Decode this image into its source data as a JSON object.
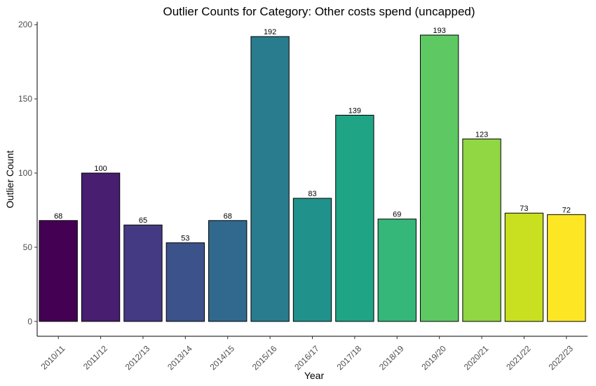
{
  "chart_data": {
    "type": "bar",
    "title": "Outlier Counts for Category: Other costs spend (uncapped)",
    "xlabel": "Year",
    "ylabel": "Outlier Count",
    "categories": [
      "2010/11",
      "2011/12",
      "2012/13",
      "2013/14",
      "2014/15",
      "2015/16",
      "2016/17",
      "2017/18",
      "2018/19",
      "2019/20",
      "2020/21",
      "2021/22",
      "2022/23"
    ],
    "values": [
      68,
      100,
      65,
      53,
      68,
      192,
      83,
      139,
      69,
      193,
      123,
      73,
      72
    ],
    "data_labels": [
      "68",
      "100",
      "65",
      "53",
      "68",
      "192",
      "83",
      "139",
      "69",
      "193",
      "123",
      "73",
      "72"
    ],
    "colors": [
      "#440154",
      "#481e70",
      "#443a83",
      "#3b528b",
      "#31688e",
      "#287c8e",
      "#21918c",
      "#20a486",
      "#35b779",
      "#5ec962",
      "#90d743",
      "#c8e020",
      "#fde725"
    ],
    "yticks": [
      0,
      50,
      100,
      150,
      200
    ],
    "ylim": [
      -10,
      202
    ],
    "grid": false,
    "legend": "none"
  }
}
